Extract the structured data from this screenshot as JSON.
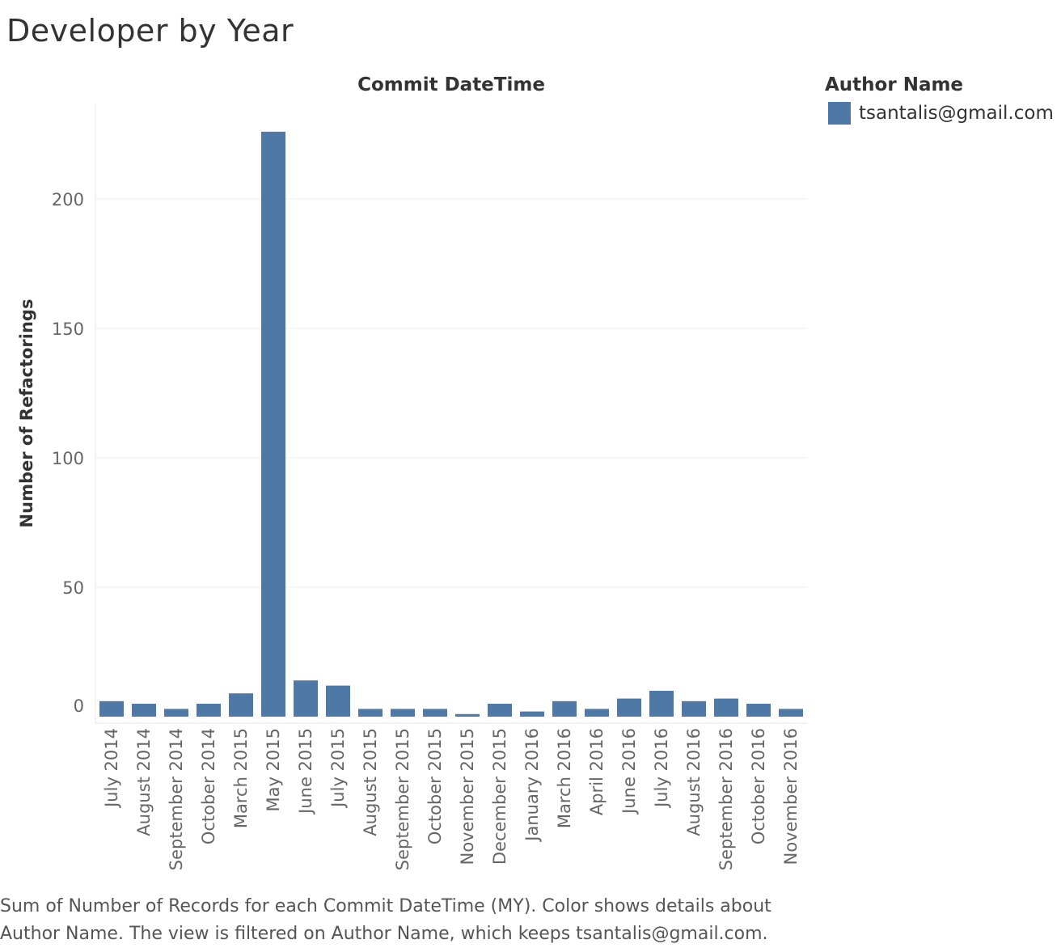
{
  "title": "Developer by Year",
  "legend": {
    "title": "Author Name",
    "items": [
      {
        "label": "tsantalis@gmail.com",
        "color": "#4E79A7"
      }
    ]
  },
  "caption": {
    "line1": "Sum of Number of Records for each Commit DateTime (MY).  Color shows details about",
    "line2": "Author Name. The view is filtered on Author Name, which keeps tsantalis@gmail.com."
  },
  "chart_data": {
    "type": "bar",
    "title": "",
    "column_header": "Commit DateTime",
    "xlabel": "",
    "ylabel": "Number of Refactorings",
    "ylim": [
      0,
      232
    ],
    "yticks": [
      0,
      50,
      100,
      150,
      200
    ],
    "grid": true,
    "legend_position": "top-right",
    "categories": [
      "July 2014",
      "August 2014",
      "September 2014",
      "October 2014",
      "March 2015",
      "May 2015",
      "June 2015",
      "July 2015",
      "August 2015",
      "September 2015",
      "October 2015",
      "November 2015",
      "December 2015",
      "January 2016",
      "March 2016",
      "April 2016",
      "June 2016",
      "July 2016",
      "August 2016",
      "September 2016",
      "October 2016",
      "November 2016"
    ],
    "series": [
      {
        "name": "tsantalis@gmail.com",
        "color": "#4E79A7",
        "values": [
          6,
          5,
          3,
          5,
          9,
          226,
          14,
          12,
          3,
          3,
          3,
          1,
          5,
          2,
          6,
          3,
          7,
          10,
          6,
          7,
          5,
          3
        ]
      }
    ]
  }
}
